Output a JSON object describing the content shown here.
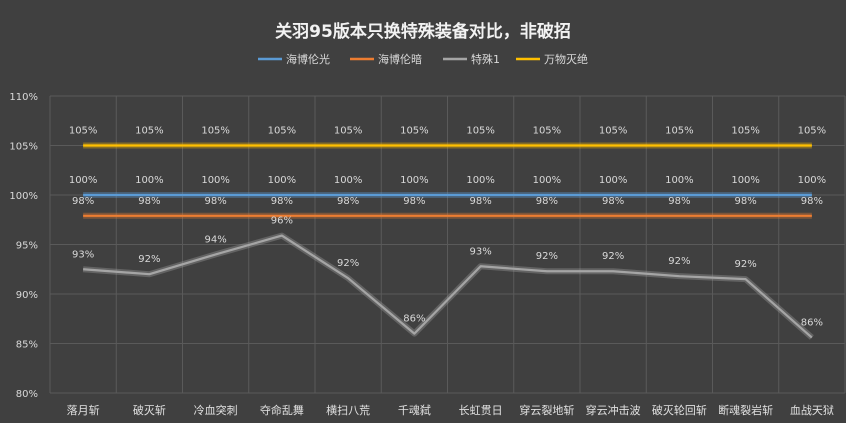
{
  "chart_data": {
    "type": "line",
    "title": "关羽95版本只换特殊装备对比，非破招",
    "categories": [
      "落月斩",
      "破灭斩",
      "冷血突刺",
      "夺命乱舞",
      "横扫八荒",
      "千魂弑",
      "长虹贯日",
      "穿云裂地斩",
      "穿云冲击波",
      "破灭轮回斩",
      "断魂裂岩斩",
      "血战天狱"
    ],
    "series": [
      {
        "name": "海博伦光",
        "color": "#5b9bd5",
        "values": [
          100,
          100,
          100,
          100,
          100,
          100,
          100,
          100,
          100,
          100,
          100,
          100
        ],
        "labels": [
          "100%",
          "100%",
          "100%",
          "100%",
          "100%",
          "100%",
          "100%",
          "100%",
          "100%",
          "100%",
          "100%",
          "100%"
        ]
      },
      {
        "name": "海博伦暗",
        "color": "#ed7d31",
        "values": [
          97.9,
          97.9,
          97.9,
          97.9,
          97.9,
          97.9,
          97.9,
          97.9,
          97.9,
          97.9,
          97.9,
          97.9
        ],
        "labels": [
          "98%",
          "98%",
          "98%",
          "98%",
          "98%",
          "98%",
          "98%",
          "98%",
          "98%",
          "98%",
          "98%",
          "98%"
        ]
      },
      {
        "name": "特殊1",
        "color": "#a5a5a5",
        "values": [
          92.5,
          92.0,
          94.0,
          95.9,
          91.6,
          86.0,
          92.8,
          92.3,
          92.3,
          91.8,
          91.5,
          85.6
        ],
        "labels": [
          "93%",
          "92%",
          "94%",
          "96%",
          "92%",
          "86%",
          "93%",
          "92%",
          "92%",
          "92%",
          "92%",
          "86%"
        ]
      },
      {
        "name": "万物灭绝",
        "color": "#ffc000",
        "values": [
          105,
          105,
          105,
          105,
          105,
          105,
          105,
          105,
          105,
          105,
          105,
          105
        ],
        "labels": [
          "105%",
          "105%",
          "105%",
          "105%",
          "105%",
          "105%",
          "105%",
          "105%",
          "105%",
          "105%",
          "105%",
          "105%"
        ]
      }
    ],
    "yticks": [
      "80%",
      "85%",
      "90%",
      "95%",
      "100%",
      "105%",
      "110%"
    ],
    "ylim": [
      80,
      110
    ],
    "grid": "vertical-and-horizontal",
    "legend": "top"
  }
}
